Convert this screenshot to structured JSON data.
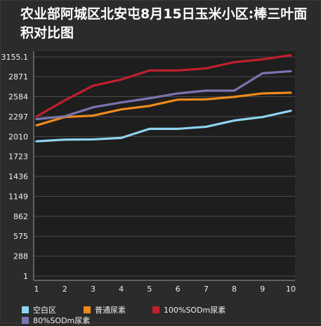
{
  "chart_data": {
    "type": "line",
    "title": "农业部阿城区北安屯8月15日玉米小区:棒三叶面积对比图",
    "xlabel": "",
    "ylabel": "",
    "x": [
      1,
      2,
      3,
      4,
      5,
      6,
      7,
      8,
      9,
      10
    ],
    "yticks": [
      1,
      288,
      575,
      862,
      1149,
      1436,
      1723,
      2010,
      2297,
      2584,
      2871,
      "3155.1"
    ],
    "ylim": [
      1,
      3155.1
    ],
    "grid": true,
    "legend_position": "bottom",
    "series": [
      {
        "name": "空白区",
        "color": "#8fd3f0",
        "values": [
          1940,
          1965,
          1968,
          1990,
          2120,
          2120,
          2150,
          2240,
          2290,
          2380
        ]
      },
      {
        "name": "普通尿素",
        "color": "#ee8a1c",
        "values": [
          2170,
          2290,
          2310,
          2400,
          2450,
          2540,
          2545,
          2580,
          2630,
          2640
        ]
      },
      {
        "name": "100%SODm尿素",
        "color": "#c0202e",
        "values": [
          2297,
          2530,
          2740,
          2830,
          2960,
          2960,
          2990,
          3080,
          3120,
          3180
        ]
      },
      {
        "name": "80%SODm尿素",
        "color": "#7a74b0",
        "values": [
          2260,
          2300,
          2430,
          2500,
          2560,
          2630,
          2670,
          2670,
          2920,
          2950
        ]
      }
    ]
  }
}
